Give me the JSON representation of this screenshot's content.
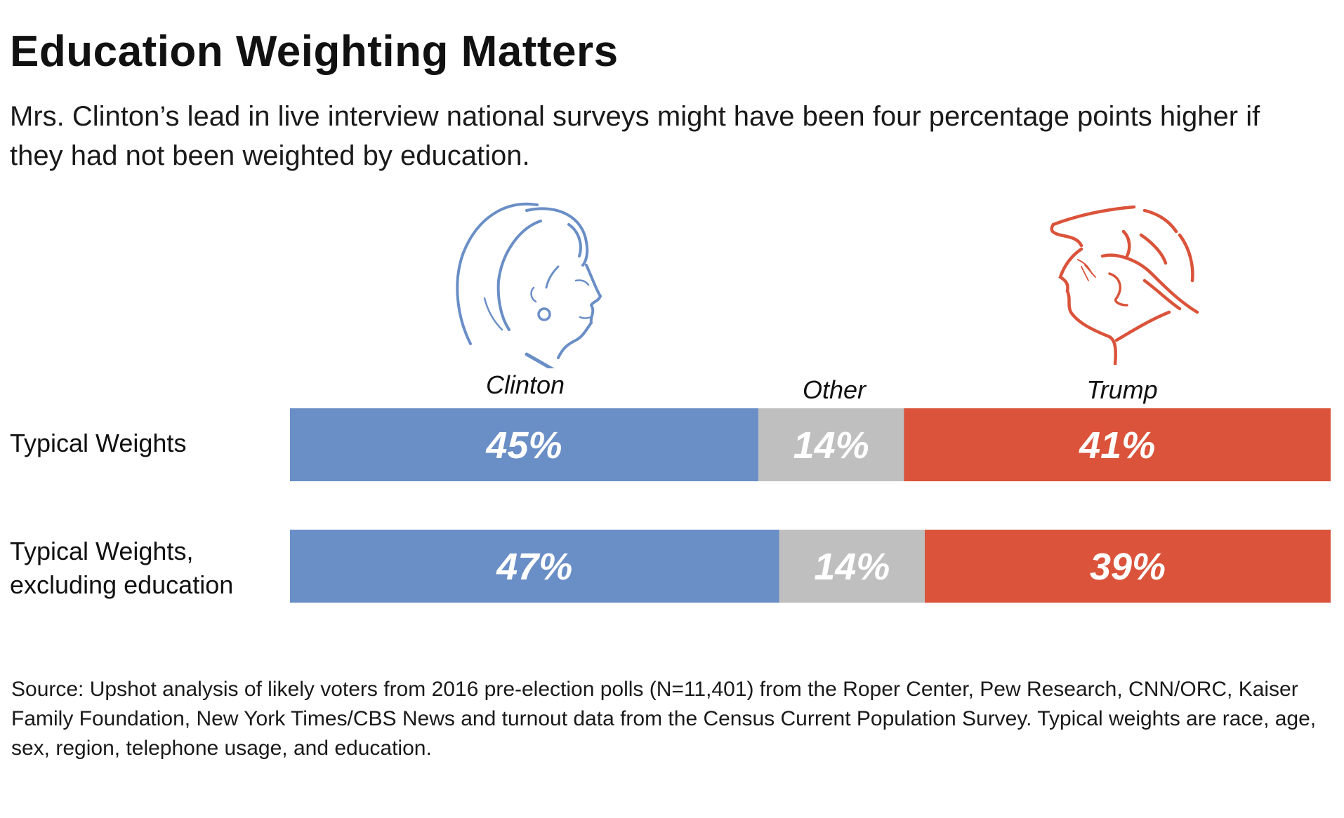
{
  "header": {
    "title": "Education Weighting Matters",
    "subtitle": "Mrs. Clinton’s lead in live interview national surveys might have been four percentage points higher if they had not been weighted by education."
  },
  "portraits": [
    {
      "name": "clinton-portrait-icon",
      "color": "#6A8EC6"
    },
    {
      "name": "trump-portrait-icon",
      "color": "#DA533A"
    }
  ],
  "chart_data": {
    "type": "bar",
    "orientation": "horizontal-stacked-100",
    "title": "Education Weighting Matters",
    "categories": [
      "Typical Weights",
      "Typical Weights, excluding education"
    ],
    "category_lines": [
      [
        "Typical Weights"
      ],
      [
        "Typical Weights,",
        "excluding education"
      ]
    ],
    "series": [
      {
        "name": "Clinton",
        "color": "#6A8EC6",
        "values": [
          45,
          47
        ],
        "labels": [
          "45%",
          "47%"
        ]
      },
      {
        "name": "Other",
        "color": "#BFBFBF",
        "values": [
          14,
          14
        ],
        "labels": [
          "14%",
          "14%"
        ]
      },
      {
        "name": "Trump",
        "color": "#DA533A",
        "values": [
          41,
          39
        ],
        "labels": [
          "41%",
          "39%"
        ]
      }
    ],
    "xlim": [
      0,
      100
    ],
    "unit": "%",
    "legend": "top (series names above first bar)"
  },
  "source": "Source: Upshot analysis of likely voters from 2016 pre-election polls (N=11,401) from the Roper Center, Pew Research, CNN/ORC, Kaiser Family Foundation, New York Times/CBS News and turnout data from the Census Current Population Survey. Typical weights are race, age, sex, region, telephone usage, and education."
}
